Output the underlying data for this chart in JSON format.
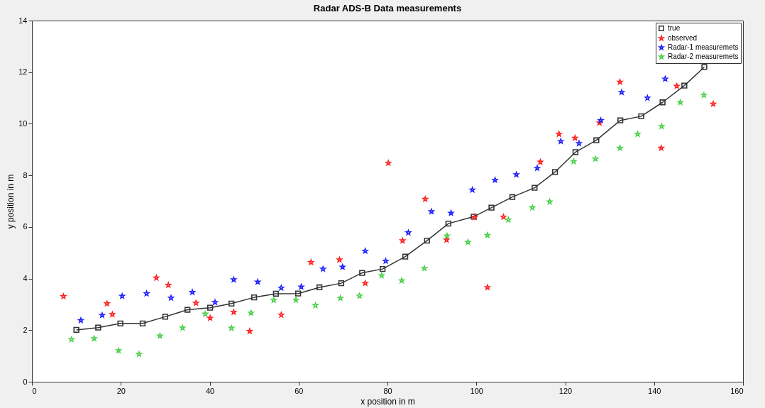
{
  "chart_data": {
    "type": "scatter",
    "title": "Radar ADS-B Data measurements",
    "xlabel": "x position in m",
    "ylabel": "y position in m",
    "xlim": [
      0,
      160
    ],
    "xticks": [
      0,
      20,
      40,
      60,
      80,
      100,
      120,
      140,
      160
    ],
    "ylim": [
      0,
      14
    ],
    "yticks": [
      0,
      2,
      4,
      6,
      8,
      10,
      12,
      14
    ],
    "grid": false,
    "legend": "top right",
    "series": [
      {
        "name": "true",
        "type": "line",
        "marker": "square",
        "color": "#333333",
        "x": [
          10.0,
          14.9,
          19.9,
          24.9,
          30.0,
          35.0,
          40.1,
          44.9,
          50.0,
          54.9,
          59.9,
          64.7,
          69.6,
          74.3,
          78.9,
          84.0,
          88.9,
          93.7,
          99.4,
          103.4,
          108.1,
          113.1,
          117.7,
          122.3,
          127.0,
          132.4,
          137.1,
          141.9,
          146.8,
          151.3
        ],
        "values": [
          2.01,
          2.1,
          2.26,
          2.26,
          2.52,
          2.79,
          2.87,
          3.03,
          3.27,
          3.41,
          3.42,
          3.66,
          3.82,
          4.22,
          4.37,
          4.85,
          5.47,
          6.13,
          6.4,
          6.75,
          7.16,
          7.52,
          8.13,
          8.9,
          9.36,
          10.13,
          10.29,
          10.83,
          11.48,
          12.2
        ]
      },
      {
        "name": "observed",
        "type": "scatter",
        "marker": "star",
        "color": "#ff2020",
        "x": [
          7.1,
          16.9,
          18.1,
          28.0,
          30.7,
          36.9,
          40.1,
          45.4,
          49.0,
          56.1,
          62.8,
          69.2,
          75.0,
          80.2,
          83.4,
          88.5,
          93.3,
          99.6,
          102.5,
          106.1,
          114.4,
          118.6,
          122.2,
          127.7,
          132.3,
          141.6,
          145.1,
          153.3
        ],
        "values": [
          3.31,
          3.03,
          2.61,
          4.03,
          3.75,
          3.05,
          2.47,
          2.7,
          1.96,
          2.59,
          4.63,
          4.73,
          3.82,
          8.48,
          5.47,
          7.08,
          5.5,
          6.38,
          3.66,
          6.39,
          8.52,
          9.6,
          9.45,
          10.04,
          11.62,
          9.06,
          11.46,
          10.77
        ]
      },
      {
        "name": "Radar-1 measuremets",
        "type": "scatter",
        "marker": "star",
        "color": "#2020ff",
        "x": [
          11.0,
          15.8,
          20.3,
          25.8,
          31.3,
          36.1,
          41.2,
          45.4,
          50.8,
          56.1,
          60.6,
          65.5,
          69.9,
          75.0,
          79.6,
          84.7,
          89.9,
          94.3,
          99.1,
          104.2,
          109.0,
          113.7,
          119.0,
          123.1,
          128.0,
          132.7,
          138.5,
          142.5
        ],
        "values": [
          2.38,
          2.58,
          3.32,
          3.42,
          3.25,
          3.47,
          3.08,
          3.96,
          3.87,
          3.64,
          3.68,
          4.37,
          4.45,
          5.07,
          4.68,
          5.78,
          6.6,
          6.54,
          7.44,
          7.82,
          8.03,
          8.28,
          9.32,
          9.24,
          10.13,
          11.22,
          11.0,
          11.74
        ]
      },
      {
        "name": "Radar-2 measuremets",
        "type": "scatter",
        "marker": "star",
        "color": "#4cd04c",
        "x": [
          8.9,
          14.0,
          19.5,
          24.1,
          28.8,
          33.9,
          39.0,
          44.9,
          49.3,
          54.4,
          59.4,
          63.8,
          69.4,
          73.7,
          78.7,
          83.2,
          88.3,
          93.4,
          98.1,
          102.5,
          107.2,
          112.6,
          116.5,
          121.9,
          126.8,
          132.3,
          136.3,
          141.7,
          145.9,
          151.2
        ],
        "values": [
          1.64,
          1.68,
          1.21,
          1.07,
          1.78,
          2.09,
          2.63,
          2.08,
          2.67,
          3.16,
          3.17,
          2.96,
          3.24,
          3.33,
          4.12,
          3.92,
          4.4,
          5.66,
          5.41,
          5.68,
          6.28,
          6.75,
          6.98,
          8.54,
          8.64,
          9.06,
          9.6,
          9.9,
          10.83,
          11.11
        ]
      }
    ]
  }
}
